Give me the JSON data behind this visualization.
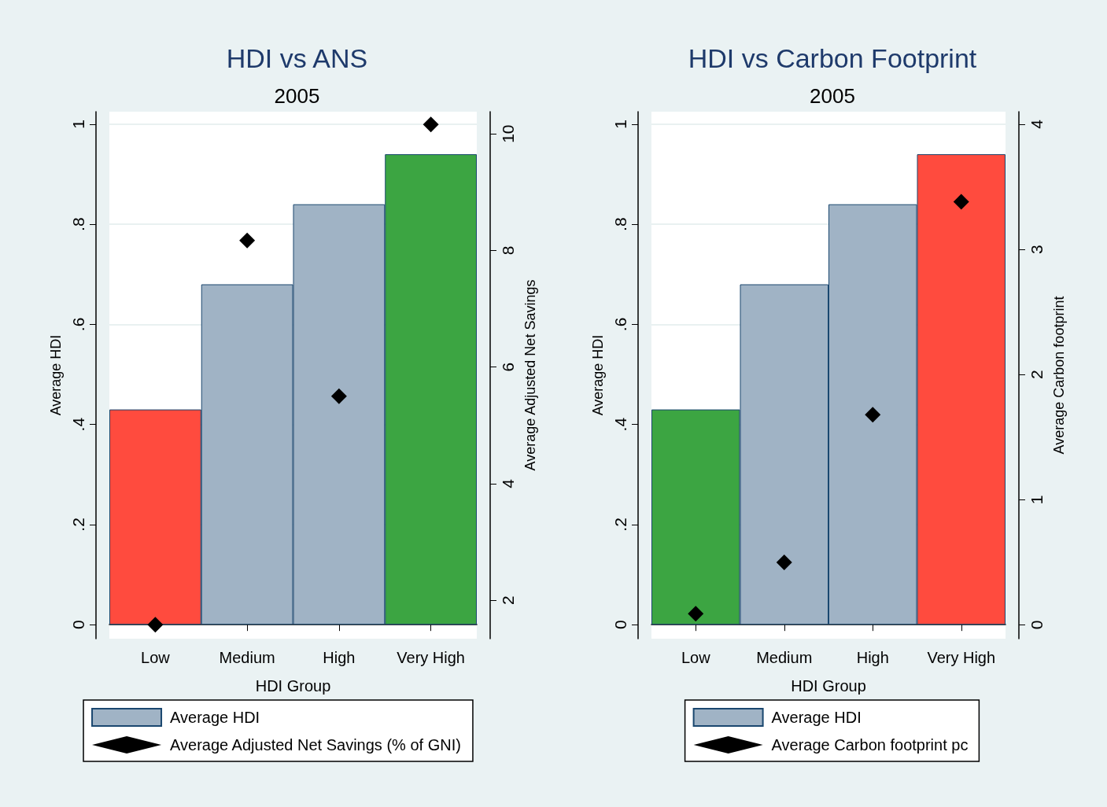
{
  "chart_data": [
    {
      "type": "bar",
      "title": "HDI vs ANS",
      "subtitle": "2005",
      "xlabel": "HDI Group",
      "ylabel": "Average HDI",
      "y2label": "Average Adjusted Net Savings",
      "categories": [
        "Low",
        "Medium",
        "High",
        "Very High"
      ],
      "series": [
        {
          "name": "Average HDI",
          "color": "#a0b3c5",
          "colors": [
            "#ff4b3e",
            "#a0b3c5",
            "#a0b3c5",
            "#3ca542"
          ],
          "values": [
            0.43,
            0.68,
            0.84,
            0.94
          ]
        },
        {
          "name": "Average Adjusted Net Savings (% of GNI)",
          "type": "scatter",
          "axis": "y2",
          "color": "#000000",
          "values": [
            1.58,
            8.17,
            5.5,
            10.16
          ]
        }
      ],
      "ylim": [
        -0.028,
        1.025
      ],
      "yticks": [
        {
          "value": 0,
          "label": "0"
        },
        {
          "value": 0.2,
          "label": ".2"
        },
        {
          "value": 0.4,
          "label": ".4"
        },
        {
          "value": 0.6,
          "label": ".6"
        },
        {
          "value": 0.8,
          "label": ".8"
        },
        {
          "value": 1,
          "label": "1"
        }
      ],
      "y2lim": [
        1.34,
        10.38
      ],
      "y2ticks": [
        2,
        4,
        6,
        8,
        10
      ],
      "grid": "y",
      "legend": "bottom",
      "marker": "diamond"
    },
    {
      "type": "bar",
      "title": "HDI vs Carbon Footprint",
      "subtitle": "2005",
      "xlabel": "HDI Group",
      "ylabel": "Average HDI",
      "y2label": "Average Carbon footprint",
      "categories": [
        "Low",
        "Medium",
        "High",
        "Very High"
      ],
      "series": [
        {
          "name": "Average HDI",
          "color": "#a0b3c5",
          "colors": [
            "#3ca542",
            "#a0b3c5",
            "#a0b3c5",
            "#ff4b3e"
          ],
          "values": [
            0.43,
            0.68,
            0.84,
            0.94
          ]
        },
        {
          "name": "Average Carbon footprint pc",
          "type": "scatter",
          "axis": "y2",
          "color": "#000000",
          "values": [
            0.09,
            0.5,
            1.68,
            3.38
          ]
        }
      ],
      "ylim": [
        -0.028,
        1.025
      ],
      "yticks": [
        {
          "value": 0,
          "label": "0"
        },
        {
          "value": 0.2,
          "label": ".2"
        },
        {
          "value": 0.4,
          "label": ".4"
        },
        {
          "value": 0.6,
          "label": ".6"
        },
        {
          "value": 0.8,
          "label": ".8"
        },
        {
          "value": 1,
          "label": "1"
        }
      ],
      "y2lim": [
        -0.11,
        4.1
      ],
      "y2ticks": [
        0,
        1,
        2,
        3,
        4
      ],
      "grid": "y",
      "legend": "bottom",
      "marker": "diamond"
    }
  ]
}
